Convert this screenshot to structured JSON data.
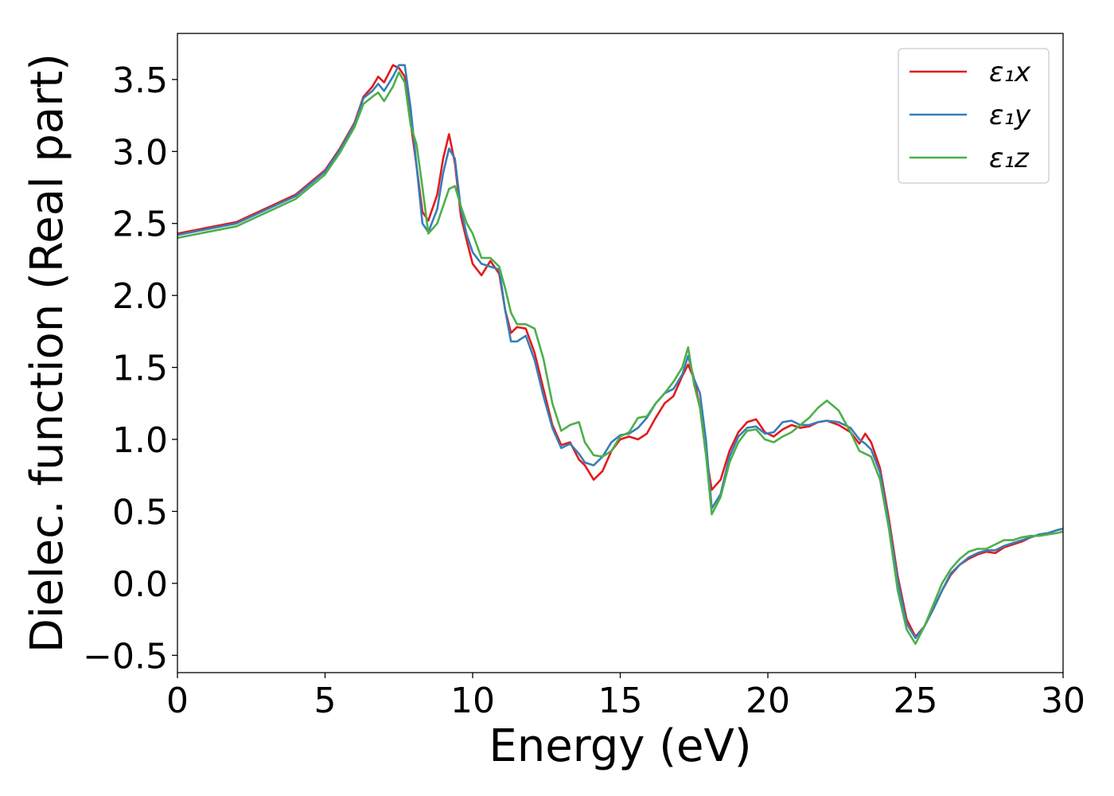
{
  "chart_data": {
    "type": "line",
    "title": "",
    "xlabel": "Energy (eV)",
    "ylabel": "Dielec. function (Real part)",
    "xlim": [
      0,
      30
    ],
    "ylim": [
      -0.62,
      3.82
    ],
    "xticks": [
      0,
      5,
      10,
      15,
      20,
      25,
      30
    ],
    "xtick_labels": [
      "0",
      "5",
      "10",
      "15",
      "20",
      "25",
      "30"
    ],
    "yticks": [
      -0.5,
      0.0,
      0.5,
      1.0,
      1.5,
      2.0,
      2.5,
      3.0,
      3.5
    ],
    "ytick_labels": [
      "−0.5",
      "0.0",
      "0.5",
      "1.0",
      "1.5",
      "2.0",
      "2.5",
      "3.0",
      "3.5"
    ],
    "grid": false,
    "legend_position": "top-right",
    "series": [
      {
        "name": "ε₁x",
        "color": "#e41a1c",
        "x": [
          0,
          2,
          4,
          5,
          5.5,
          6,
          6.3,
          6.6,
          6.8,
          7.0,
          7.3,
          7.5,
          7.7,
          7.9,
          8.1,
          8.3,
          8.5,
          8.8,
          9.0,
          9.2,
          9.4,
          9.6,
          9.8,
          10.0,
          10.3,
          10.6,
          10.9,
          11.1,
          11.3,
          11.5,
          11.8,
          12.1,
          12.4,
          12.7,
          13.0,
          13.3,
          13.6,
          13.8,
          14.1,
          14.4,
          14.7,
          15.0,
          15.3,
          15.6,
          15.9,
          16.2,
          16.5,
          16.8,
          17.1,
          17.3,
          17.5,
          17.7,
          17.9,
          18.1,
          18.4,
          18.7,
          19.0,
          19.3,
          19.6,
          19.9,
          20.2,
          20.5,
          20.8,
          21.1,
          21.4,
          21.7,
          22.0,
          22.4,
          22.8,
          23.1,
          23.3,
          23.5,
          23.8,
          24.1,
          24.4,
          24.7,
          25.0,
          25.3,
          25.6,
          25.9,
          26.2,
          26.5,
          26.8,
          27.1,
          27.4,
          27.7,
          28.0,
          28.3,
          28.6,
          28.9,
          29.2,
          29.5,
          29.8,
          30.0
        ],
        "y": [
          2.43,
          2.51,
          2.7,
          2.87,
          3.02,
          3.2,
          3.38,
          3.45,
          3.52,
          3.48,
          3.6,
          3.58,
          3.52,
          3.2,
          2.9,
          2.58,
          2.52,
          2.7,
          2.95,
          3.12,
          2.92,
          2.55,
          2.38,
          2.22,
          2.14,
          2.24,
          2.15,
          1.9,
          1.74,
          1.78,
          1.77,
          1.6,
          1.35,
          1.1,
          0.96,
          0.98,
          0.86,
          0.82,
          0.72,
          0.78,
          0.92,
          1.0,
          1.02,
          1.0,
          1.04,
          1.15,
          1.25,
          1.3,
          1.44,
          1.52,
          1.42,
          1.22,
          0.9,
          0.65,
          0.72,
          0.92,
          1.05,
          1.12,
          1.14,
          1.05,
          1.02,
          1.07,
          1.1,
          1.08,
          1.09,
          1.12,
          1.13,
          1.1,
          1.05,
          0.97,
          1.04,
          0.98,
          0.8,
          0.45,
          0.05,
          -0.25,
          -0.37,
          -0.3,
          -0.18,
          -0.05,
          0.06,
          0.13,
          0.17,
          0.2,
          0.22,
          0.21,
          0.25,
          0.27,
          0.29,
          0.32,
          0.34,
          0.35,
          0.37,
          0.38
        ]
      },
      {
        "name": "ε₁y",
        "color": "#377eb8",
        "x": [
          0,
          2,
          4,
          5,
          5.5,
          6,
          6.3,
          6.6,
          6.8,
          7.0,
          7.3,
          7.5,
          7.7,
          7.9,
          8.1,
          8.3,
          8.5,
          8.8,
          9.0,
          9.2,
          9.4,
          9.6,
          9.8,
          10.0,
          10.3,
          10.6,
          10.9,
          11.1,
          11.3,
          11.5,
          11.8,
          12.1,
          12.4,
          12.7,
          13.0,
          13.3,
          13.6,
          13.8,
          14.1,
          14.4,
          14.7,
          15.0,
          15.3,
          15.6,
          15.9,
          16.2,
          16.5,
          16.8,
          17.1,
          17.3,
          17.5,
          17.7,
          17.9,
          18.1,
          18.4,
          18.7,
          19.0,
          19.3,
          19.6,
          19.9,
          20.2,
          20.5,
          20.8,
          21.1,
          21.4,
          21.7,
          22.0,
          22.4,
          22.8,
          23.1,
          23.3,
          23.5,
          23.8,
          24.1,
          24.4,
          24.7,
          25.0,
          25.3,
          25.6,
          25.9,
          26.2,
          26.5,
          26.8,
          27.1,
          27.4,
          27.7,
          28.0,
          28.3,
          28.6,
          28.9,
          29.2,
          29.5,
          29.8,
          30.0
        ],
        "y": [
          2.42,
          2.5,
          2.69,
          2.86,
          3.01,
          3.19,
          3.37,
          3.42,
          3.47,
          3.42,
          3.52,
          3.6,
          3.6,
          3.3,
          2.9,
          2.5,
          2.44,
          2.6,
          2.85,
          3.02,
          2.95,
          2.6,
          2.42,
          2.3,
          2.22,
          2.2,
          2.18,
          1.9,
          1.68,
          1.68,
          1.72,
          1.55,
          1.3,
          1.08,
          0.94,
          0.97,
          0.9,
          0.84,
          0.82,
          0.88,
          0.98,
          1.03,
          1.04,
          1.08,
          1.15,
          1.25,
          1.32,
          1.35,
          1.45,
          1.58,
          1.42,
          1.32,
          1.0,
          0.52,
          0.62,
          0.88,
          1.02,
          1.08,
          1.09,
          1.04,
          1.05,
          1.12,
          1.13,
          1.1,
          1.1,
          1.12,
          1.13,
          1.12,
          1.08,
          1.0,
          0.97,
          0.93,
          0.77,
          0.42,
          0.02,
          -0.28,
          -0.38,
          -0.3,
          -0.18,
          -0.05,
          0.07,
          0.13,
          0.18,
          0.21,
          0.23,
          0.23,
          0.26,
          0.28,
          0.3,
          0.32,
          0.34,
          0.35,
          0.37,
          0.38
        ]
      },
      {
        "name": "ε₁z",
        "color": "#4daf4a",
        "x": [
          0,
          2,
          4,
          5,
          5.5,
          6,
          6.3,
          6.6,
          6.8,
          7.0,
          7.3,
          7.5,
          7.7,
          7.9,
          8.1,
          8.3,
          8.5,
          8.8,
          9.0,
          9.2,
          9.4,
          9.6,
          9.8,
          10.0,
          10.3,
          10.6,
          10.9,
          11.1,
          11.3,
          11.5,
          11.8,
          12.1,
          12.4,
          12.7,
          13.0,
          13.3,
          13.6,
          13.8,
          14.1,
          14.4,
          14.7,
          15.0,
          15.3,
          15.6,
          15.9,
          16.2,
          16.5,
          16.8,
          17.1,
          17.3,
          17.5,
          17.7,
          17.9,
          18.1,
          18.4,
          18.7,
          19.0,
          19.3,
          19.6,
          19.9,
          20.2,
          20.5,
          20.8,
          21.1,
          21.4,
          21.7,
          22.0,
          22.4,
          22.8,
          23.1,
          23.3,
          23.5,
          23.8,
          24.1,
          24.4,
          24.7,
          25.0,
          25.3,
          25.6,
          25.9,
          26.2,
          26.5,
          26.8,
          27.1,
          27.4,
          27.7,
          28.0,
          28.3,
          28.6,
          28.9,
          29.2,
          29.5,
          29.8,
          30.0
        ],
        "y": [
          2.4,
          2.48,
          2.67,
          2.84,
          2.99,
          3.17,
          3.33,
          3.38,
          3.41,
          3.35,
          3.45,
          3.55,
          3.48,
          3.18,
          3.05,
          2.75,
          2.43,
          2.5,
          2.62,
          2.74,
          2.76,
          2.62,
          2.5,
          2.43,
          2.26,
          2.26,
          2.2,
          2.05,
          1.88,
          1.8,
          1.8,
          1.77,
          1.56,
          1.25,
          1.06,
          1.1,
          1.12,
          0.98,
          0.89,
          0.88,
          0.92,
          1.02,
          1.05,
          1.15,
          1.16,
          1.25,
          1.32,
          1.4,
          1.5,
          1.64,
          1.38,
          1.22,
          0.9,
          0.48,
          0.6,
          0.84,
          0.98,
          1.06,
          1.07,
          1.0,
          0.98,
          1.02,
          1.05,
          1.1,
          1.15,
          1.22,
          1.27,
          1.2,
          1.05,
          0.92,
          0.9,
          0.88,
          0.72,
          0.38,
          -0.05,
          -0.32,
          -0.42,
          -0.3,
          -0.15,
          0.0,
          0.1,
          0.17,
          0.22,
          0.24,
          0.24,
          0.27,
          0.3,
          0.3,
          0.32,
          0.33,
          0.33,
          0.34,
          0.35,
          0.36
        ]
      }
    ]
  }
}
